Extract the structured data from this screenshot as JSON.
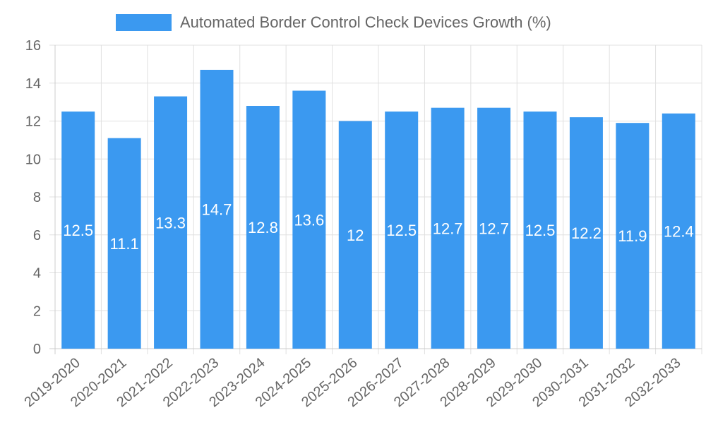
{
  "chart_data": {
    "type": "bar",
    "categories": [
      "2019-2020",
      "2020-2021",
      "2021-2022",
      "2022-2023",
      "2023-2024",
      "2024-2025",
      "2025-2026",
      "2026-2027",
      "2027-2028",
      "2028-2029",
      "2029-2030",
      "2030-2031",
      "2031-2032",
      "2032-2033"
    ],
    "series": [
      {
        "name": "Automated Border Control Check Devices Growth (%)",
        "values": [
          12.5,
          11.1,
          13.3,
          14.7,
          12.8,
          13.6,
          12,
          12.5,
          12.7,
          12.7,
          12.5,
          12.2,
          11.9,
          12.4
        ],
        "color": "#3b99f0"
      }
    ],
    "ylim": [
      0,
      16
    ],
    "yticks": [
      0,
      2,
      4,
      6,
      8,
      10,
      12,
      14,
      16
    ],
    "xlabel": "",
    "ylabel": "",
    "grid": true,
    "legend_position": "top-center",
    "data_labels": true
  }
}
